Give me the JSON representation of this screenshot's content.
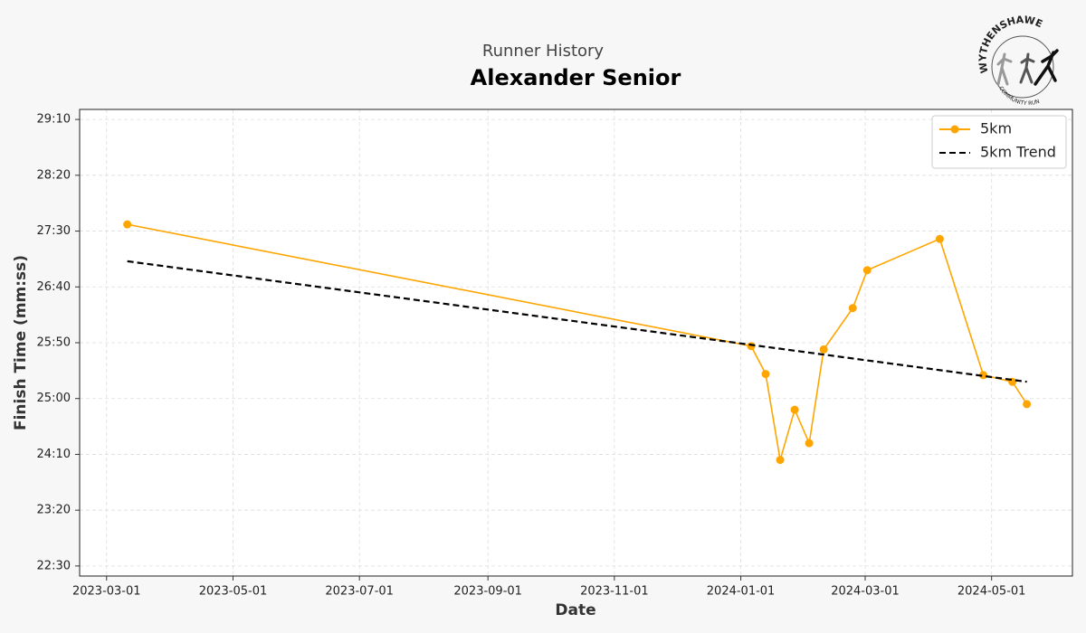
{
  "chart_data": {
    "type": "line",
    "title": "Alexander Senior",
    "subtitle": "Runner History",
    "xlabel": "Date",
    "ylabel": "Finish Time (mm:ss)",
    "series": [
      {
        "name": "5km",
        "color": "#ffa500",
        "marker": true,
        "linestyle": "solid",
        "x": [
          "2023-03-11",
          "2024-01-06",
          "2024-01-13",
          "2024-01-20",
          "2024-01-27",
          "2024-02-03",
          "2024-02-10",
          "2024-02-24",
          "2024-03-02",
          "2024-04-06",
          "2024-04-27",
          "2024-05-11",
          "2024-05-18"
        ],
        "values": [
          1656,
          1547,
          1522,
          1445,
          1490,
          1460,
          1544,
          1581,
          1615,
          1643,
          1521,
          1515,
          1495
        ]
      },
      {
        "name": "5km Trend",
        "color": "#000000",
        "marker": false,
        "linestyle": "dashed",
        "x": [
          "2023-03-11",
          "2024-05-18"
        ],
        "values": [
          1623,
          1515
        ]
      }
    ],
    "xlim": [
      "2023-02-16",
      "2024-06-09"
    ],
    "xticks": [
      "2023-03-01",
      "2023-05-01",
      "2023-07-01",
      "2023-09-01",
      "2023-11-01",
      "2024-01-01",
      "2024-03-01",
      "2024-05-01"
    ],
    "ylim": [
      1341,
      1759
    ],
    "yticks": [
      {
        "value": 1350,
        "label": "22:30"
      },
      {
        "value": 1400,
        "label": "23:20"
      },
      {
        "value": 1450,
        "label": "24:10"
      },
      {
        "value": 1500,
        "label": "25:00"
      },
      {
        "value": 1550,
        "label": "25:50"
      },
      {
        "value": 1600,
        "label": "26:40"
      },
      {
        "value": 1650,
        "label": "27:30"
      },
      {
        "value": 1700,
        "label": "28:20"
      },
      {
        "value": 1750,
        "label": "29:10"
      }
    ],
    "grid": true,
    "legend": "upper right"
  },
  "logo": {
    "top": "WYTHENSHAWE",
    "bottom": "COMMUNITY RUN"
  }
}
